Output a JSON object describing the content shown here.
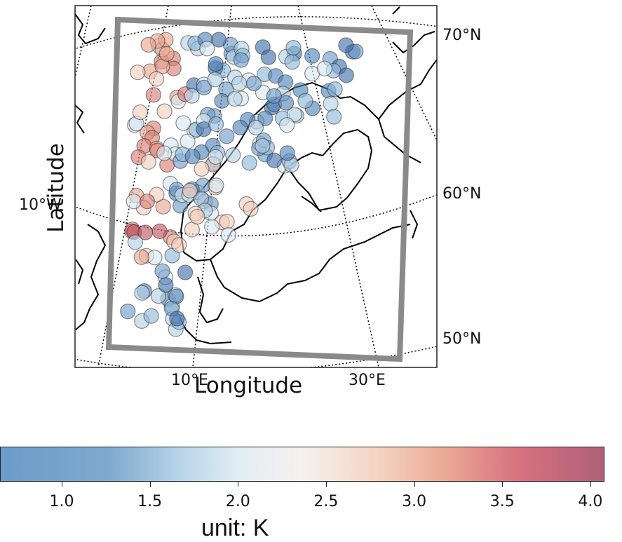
{
  "map": {
    "graticule_labels": {
      "lat_70": "70°N",
      "lat_60": "60°N",
      "lat_50": "50°N",
      "lon_w10": "10°W",
      "lon_e10": "10°E",
      "lon_e30": "30°E"
    },
    "xlabel": "Longitude",
    "ylabel": "Latitude",
    "colors": {
      "domain_box": "#8a8a8a",
      "coastline": "#000000",
      "graticule": "#000000"
    }
  },
  "colorbar": {
    "ticks": [
      "1.0",
      "1.5",
      "2.0",
      "2.5",
      "3.0",
      "3.5",
      "4.0"
    ],
    "tick_values": [
      1.0,
      1.5,
      2.0,
      2.5,
      3.0,
      3.5,
      4.0
    ],
    "range": [
      0.65,
      4.08
    ],
    "unit_label": "unit: K",
    "colormap": "RdBu_r",
    "colors": [
      "#4a7fb5",
      "#9cc3de",
      "#f2f2f2",
      "#f3c3ab",
      "#cf5a64",
      "#a9546e"
    ]
  }
}
